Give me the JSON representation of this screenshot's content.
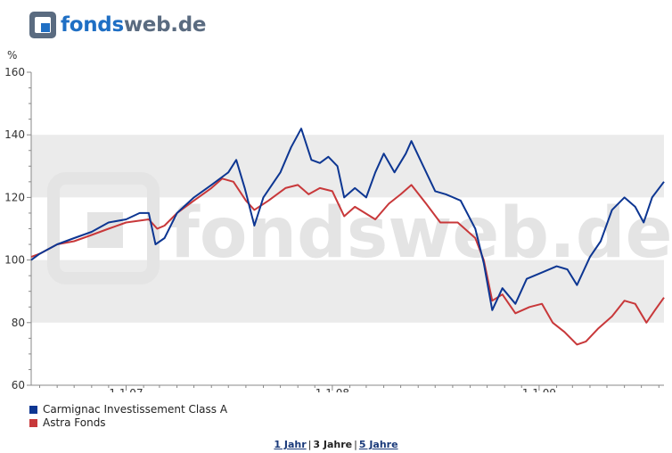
{
  "brand": {
    "part1": "fonds",
    "part2": "web.de"
  },
  "colors": {
    "blue": "#0d3692",
    "red": "#c8383a",
    "band": "#ebebeb",
    "axis": "#888888",
    "watermark": "#e4e4e4"
  },
  "chart_data": {
    "type": "line",
    "ylabel": "%",
    "ylim": [
      60,
      160
    ],
    "yticks": [
      60,
      80,
      100,
      120,
      140,
      160
    ],
    "xlim": [
      "2006-07-17",
      "2009-08-10"
    ],
    "xticks": [
      {
        "date": "2007-01-01",
        "label": "1.1.07"
      },
      {
        "date": "2008-01-01",
        "label": "1.1.08"
      },
      {
        "date": "2009-01-01",
        "label": "1.1.09"
      }
    ],
    "watermark": "fondsweb.de",
    "grid": "alternating horizontal bands",
    "legend_position": "bottom-left",
    "series": [
      {
        "name": "Carmignac Investissement Class A",
        "color": "#0d3692",
        "points": [
          [
            "2006-07-17",
            100
          ],
          [
            "2006-08-01",
            102
          ],
          [
            "2006-09-01",
            105
          ],
          [
            "2006-10-01",
            107
          ],
          [
            "2006-11-01",
            109
          ],
          [
            "2006-12-01",
            112
          ],
          [
            "2007-01-01",
            113
          ],
          [
            "2007-01-25",
            115
          ],
          [
            "2007-02-10",
            115
          ],
          [
            "2007-02-22",
            105
          ],
          [
            "2007-03-10",
            107
          ],
          [
            "2007-04-01",
            115
          ],
          [
            "2007-05-01",
            120
          ],
          [
            "2007-06-01",
            124
          ],
          [
            "2007-07-01",
            128
          ],
          [
            "2007-07-15",
            132
          ],
          [
            "2007-07-30",
            123
          ],
          [
            "2007-08-16",
            111
          ],
          [
            "2007-09-01",
            120
          ],
          [
            "2007-10-01",
            128
          ],
          [
            "2007-10-20",
            136
          ],
          [
            "2007-11-07",
            142
          ],
          [
            "2007-11-25",
            132
          ],
          [
            "2007-12-10",
            131
          ],
          [
            "2007-12-25",
            133
          ],
          [
            "2008-01-10",
            130
          ],
          [
            "2008-01-22",
            120
          ],
          [
            "2008-02-10",
            123
          ],
          [
            "2008-03-01",
            120
          ],
          [
            "2008-03-17",
            128
          ],
          [
            "2008-04-01",
            134
          ],
          [
            "2008-04-20",
            128
          ],
          [
            "2008-05-10",
            134
          ],
          [
            "2008-05-20",
            138
          ],
          [
            "2008-06-10",
            130
          ],
          [
            "2008-07-01",
            122
          ],
          [
            "2008-07-20",
            121
          ],
          [
            "2008-08-15",
            119
          ],
          [
            "2008-09-10",
            110
          ],
          [
            "2008-09-25",
            99
          ],
          [
            "2008-10-10",
            84
          ],
          [
            "2008-10-28",
            91
          ],
          [
            "2008-11-20",
            86
          ],
          [
            "2008-12-10",
            94
          ],
          [
            "2009-01-06",
            96
          ],
          [
            "2009-02-01",
            98
          ],
          [
            "2009-02-20",
            97
          ],
          [
            "2009-03-09",
            92
          ],
          [
            "2009-04-01",
            101
          ],
          [
            "2009-04-20",
            106
          ],
          [
            "2009-05-10",
            116
          ],
          [
            "2009-06-01",
            120
          ],
          [
            "2009-06-20",
            117
          ],
          [
            "2009-07-05",
            112
          ],
          [
            "2009-07-20",
            120
          ],
          [
            "2009-08-10",
            125
          ]
        ]
      },
      {
        "name": "Astra Fonds",
        "color": "#c8383a",
        "points": [
          [
            "2006-07-17",
            101
          ],
          [
            "2006-08-01",
            102
          ],
          [
            "2006-09-01",
            105
          ],
          [
            "2006-10-01",
            106
          ],
          [
            "2006-11-01",
            108
          ],
          [
            "2006-12-01",
            110
          ],
          [
            "2007-01-01",
            112
          ],
          [
            "2007-02-10",
            113
          ],
          [
            "2007-02-25",
            110
          ],
          [
            "2007-03-10",
            111
          ],
          [
            "2007-04-01",
            115
          ],
          [
            "2007-05-01",
            119
          ],
          [
            "2007-06-01",
            123
          ],
          [
            "2007-06-20",
            126
          ],
          [
            "2007-07-10",
            125
          ],
          [
            "2007-08-01",
            119
          ],
          [
            "2007-08-16",
            116
          ],
          [
            "2007-09-10",
            119
          ],
          [
            "2007-10-10",
            123
          ],
          [
            "2007-11-01",
            124
          ],
          [
            "2007-11-20",
            121
          ],
          [
            "2007-12-10",
            123
          ],
          [
            "2008-01-01",
            122
          ],
          [
            "2008-01-22",
            114
          ],
          [
            "2008-02-10",
            117
          ],
          [
            "2008-03-17",
            113
          ],
          [
            "2008-04-10",
            118
          ],
          [
            "2008-05-01",
            121
          ],
          [
            "2008-05-20",
            124
          ],
          [
            "2008-06-15",
            118
          ],
          [
            "2008-07-10",
            112
          ],
          [
            "2008-08-10",
            112
          ],
          [
            "2008-09-10",
            107
          ],
          [
            "2008-09-25",
            100
          ],
          [
            "2008-10-10",
            87
          ],
          [
            "2008-10-28",
            89
          ],
          [
            "2008-11-20",
            83
          ],
          [
            "2008-12-15",
            85
          ],
          [
            "2009-01-06",
            86
          ],
          [
            "2009-01-25",
            80
          ],
          [
            "2009-02-15",
            77
          ],
          [
            "2009-03-09",
            73
          ],
          [
            "2009-03-25",
            74
          ],
          [
            "2009-04-15",
            78
          ],
          [
            "2009-05-10",
            82
          ],
          [
            "2009-06-01",
            87
          ],
          [
            "2009-06-20",
            86
          ],
          [
            "2009-07-10",
            80
          ],
          [
            "2009-07-25",
            84
          ],
          [
            "2009-08-10",
            88
          ]
        ]
      }
    ]
  },
  "range_links": [
    {
      "label": "1 Jahr",
      "selected": false
    },
    {
      "label": "3 Jahre",
      "selected": true
    },
    {
      "label": "5 Jahre",
      "selected": false
    }
  ]
}
